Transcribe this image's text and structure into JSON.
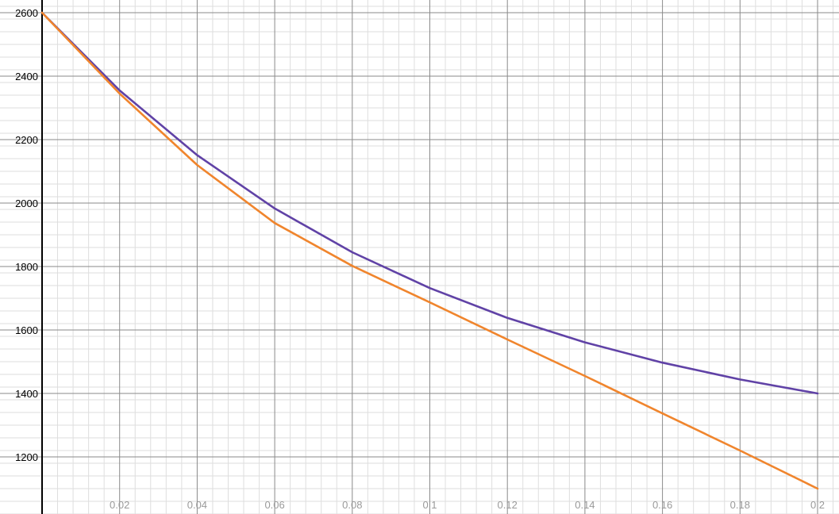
{
  "chart_data": {
    "type": "line",
    "title": "",
    "xlabel": "",
    "ylabel": "",
    "xlim": [
      0,
      0.2
    ],
    "ylim": [
      1100,
      2600
    ],
    "grid": true,
    "minor_grid": true,
    "x_ticks": [
      0.02,
      0.04,
      0.06,
      0.08,
      0.1,
      0.12,
      0.14,
      0.16,
      0.18,
      0.2
    ],
    "x_tick_labels": [
      "0.02",
      "0.04",
      "0.06",
      "0.08",
      "0.1",
      "0.12",
      "0.14",
      "0.16",
      "0.18",
      "0.2"
    ],
    "y_ticks": [
      1200,
      1400,
      1600,
      1800,
      2000,
      2200,
      2400,
      2600
    ],
    "y_tick_labels": [
      "1200",
      "1400",
      "1600",
      "1800",
      "2000",
      "2200",
      "2400",
      "2600"
    ],
    "series": [
      {
        "color": "#6042a6",
        "x": [
          0,
          0.02,
          0.04,
          0.06,
          0.08,
          0.1,
          0.12,
          0.14,
          0.16,
          0.18,
          0.2
        ],
        "y": [
          2600,
          2355,
          2151,
          1983,
          1845,
          1732,
          1638,
          1561,
          1497,
          1444,
          1400
        ]
      },
      {
        "color": "#f0852d",
        "x": [
          0,
          0.02,
          0.04,
          0.06,
          0.08,
          0.1,
          0.12,
          0.14,
          0.16,
          0.18,
          0.2
        ],
        "y": [
          2600,
          2345,
          2120,
          1937,
          1802,
          1687,
          1570,
          1455,
          1337,
          1220,
          1100
        ]
      }
    ],
    "colors": {
      "major_grid": "#8a8a8a",
      "minor_grid": "#dedede",
      "axis": "#000000",
      "x_tick_text": "#9a9a9a",
      "y_tick_text": "#000000",
      "background": "#ffffff"
    }
  }
}
